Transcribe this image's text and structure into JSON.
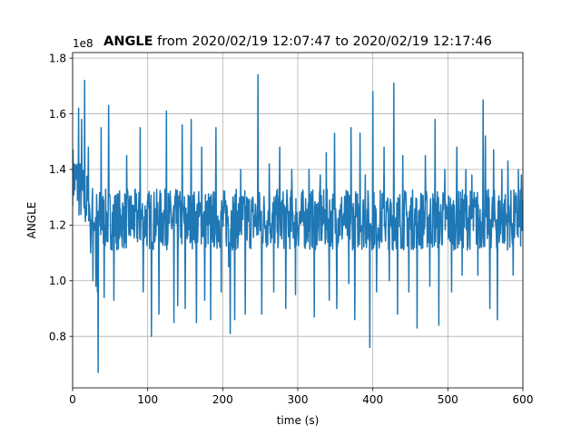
{
  "chart_data": {
    "type": "line",
    "title_bold": "ANGLE",
    "title_rest": " from 2020/02/19 12:07:47 to 2020/02/19 12:17:46",
    "xlabel": "time (s)",
    "ylabel": "ANGLE",
    "offset_text": "1e8",
    "xlim": [
      0,
      600
    ],
    "ylim": [
      0.615,
      1.82
    ],
    "xticks": [
      0,
      100,
      200,
      300,
      400,
      500,
      600
    ],
    "xtick_labels": [
      "0",
      "100",
      "200",
      "300",
      "400",
      "500",
      "600"
    ],
    "yticks": [
      0.8,
      1.0,
      1.2,
      1.4,
      1.6,
      1.8
    ],
    "ytick_labels": [
      "0.8",
      "1.0",
      "1.2",
      "1.4",
      "1.6",
      "1.8"
    ],
    "grid": true,
    "colors": {
      "line": "#1f77b4",
      "grid": "#b0b0b0"
    },
    "series": [
      {
        "x_start": 0,
        "x_end": 600,
        "x_step": 0.5,
        "baseline": 1.22,
        "noise_amplitude": 0.11,
        "early_level": 1.38,
        "early_until": 30,
        "seed": 7,
        "spikes": [
          [
            8,
            1.62
          ],
          [
            12,
            1.58
          ],
          [
            16,
            1.72
          ],
          [
            21,
            1.48
          ],
          [
            24,
            1.1
          ],
          [
            27,
            1.0
          ],
          [
            31,
            0.98
          ],
          [
            33,
            0.96
          ],
          [
            34,
            0.67
          ],
          [
            38,
            1.55
          ],
          [
            42,
            0.94
          ],
          [
            48,
            1.63
          ],
          [
            55,
            0.93
          ],
          [
            72,
            1.45
          ],
          [
            90,
            1.55
          ],
          [
            94,
            0.96
          ],
          [
            105,
            0.8
          ],
          [
            115,
            0.88
          ],
          [
            125,
            1.61
          ],
          [
            135,
            0.85
          ],
          [
            140,
            0.91
          ],
          [
            146,
            1.56
          ],
          [
            150,
            0.9
          ],
          [
            158,
            1.58
          ],
          [
            165,
            0.85
          ],
          [
            172,
            1.48
          ],
          [
            176,
            0.93
          ],
          [
            184,
            0.86
          ],
          [
            191,
            1.55
          ],
          [
            198,
            0.96
          ],
          [
            208,
            1.05
          ],
          [
            210,
            0.81
          ],
          [
            216,
            0.86
          ],
          [
            224,
            1.4
          ],
          [
            230,
            0.88
          ],
          [
            247,
            1.74
          ],
          [
            252,
            0.88
          ],
          [
            262,
            1.42
          ],
          [
            268,
            0.96
          ],
          [
            276,
            1.48
          ],
          [
            284,
            0.9
          ],
          [
            292,
            1.4
          ],
          [
            297,
            0.95
          ],
          [
            315,
            1.4
          ],
          [
            322,
            0.87
          ],
          [
            330,
            1.38
          ],
          [
            338,
            1.46
          ],
          [
            342,
            0.93
          ],
          [
            349,
            1.53
          ],
          [
            352,
            0.9
          ],
          [
            368,
            0.99
          ],
          [
            371,
            1.55
          ],
          [
            376,
            0.86
          ],
          [
            383,
            1.53
          ],
          [
            390,
            1.38
          ],
          [
            396,
            0.76
          ],
          [
            400,
            1.68
          ],
          [
            405,
            0.96
          ],
          [
            415,
            1.48
          ],
          [
            422,
            1.0
          ],
          [
            428,
            1.71
          ],
          [
            433,
            0.88
          ],
          [
            440,
            1.45
          ],
          [
            448,
            0.96
          ],
          [
            459,
            0.83
          ],
          [
            470,
            1.45
          ],
          [
            476,
            0.98
          ],
          [
            483,
            1.58
          ],
          [
            488,
            0.84
          ],
          [
            496,
            1.4
          ],
          [
            505,
            0.96
          ],
          [
            512,
            1.48
          ],
          [
            519,
            1.02
          ],
          [
            524,
            1.4
          ],
          [
            532,
            1.38
          ],
          [
            540,
            1.02
          ],
          [
            547,
            1.65
          ],
          [
            550,
            1.52
          ],
          [
            556,
            0.9
          ],
          [
            561,
            1.47
          ],
          [
            566,
            0.86
          ],
          [
            572,
            1.4
          ],
          [
            580,
            1.43
          ],
          [
            587,
            1.02
          ],
          [
            594,
            1.4
          ],
          [
            598,
            1.38
          ]
        ]
      }
    ]
  }
}
